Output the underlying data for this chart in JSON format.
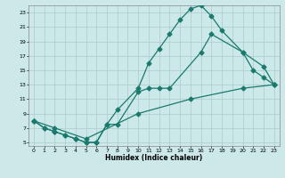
{
  "xlabel": "Humidex (Indice chaleur)",
  "bg_color": "#cce8e8",
  "grid_color": "#aacccc",
  "line_color": "#1a7a6e",
  "xlim": [
    -0.5,
    23.5
  ],
  "ylim": [
    4.5,
    24.0
  ],
  "xticks": [
    0,
    1,
    2,
    3,
    4,
    5,
    6,
    7,
    8,
    9,
    10,
    11,
    12,
    13,
    14,
    15,
    16,
    17,
    18,
    19,
    20,
    21,
    22,
    23
  ],
  "yticks": [
    5,
    7,
    9,
    11,
    13,
    15,
    17,
    19,
    21,
    23
  ],
  "line1_x": [
    0,
    1,
    2,
    3,
    4,
    5,
    6,
    7,
    8,
    10,
    11,
    12,
    13,
    14,
    15,
    16,
    17,
    18,
    20,
    21,
    22,
    23
  ],
  "line1_y": [
    8,
    7,
    6.5,
    6,
    5.5,
    5,
    5,
    7.5,
    9.5,
    12.5,
    16,
    18,
    20,
    22,
    23.5,
    24,
    22.5,
    20.5,
    17.5,
    15,
    14,
    13
  ],
  "line2_x": [
    0,
    1,
    2,
    3,
    4,
    5,
    6,
    7,
    8,
    10,
    11,
    12,
    13,
    16,
    17,
    20,
    22,
    23
  ],
  "line2_y": [
    8,
    7,
    6.5,
    6,
    5.5,
    5,
    5,
    7.5,
    7.5,
    12,
    12.5,
    12.5,
    12.5,
    17.5,
    20,
    17.5,
    15.5,
    13
  ],
  "line3_x": [
    0,
    2,
    5,
    10,
    15,
    20,
    23
  ],
  "line3_y": [
    8,
    7,
    5.5,
    9,
    11,
    12.5,
    13
  ]
}
